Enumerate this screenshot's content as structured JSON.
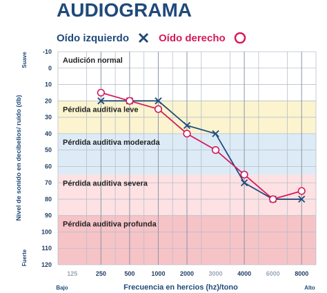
{
  "title": "AUDIOGRAMA",
  "legend": {
    "left_label": "Oído izquierdo",
    "right_label": "Oído derecho"
  },
  "colors": {
    "title": "#1f4a7a",
    "left_ear": "#1f4a7a",
    "right_ear": "#d6195b",
    "band_normal": "#ffffff",
    "band_leve": "#fbf4cf",
    "band_moderada": "#dcebf6",
    "band_severa": "#fde1e3",
    "band_profunda": "#f6c3c7",
    "grid": "#b7bfca"
  },
  "chart_data": {
    "type": "line",
    "title": "AUDIOGRAMA",
    "xlabel": "Frecuencia en hercios (hz)/tono",
    "ylabel": "Nivel de sonido en decibelios/ ruido (db)",
    "x_ticks": [
      "125",
      "250",
      "500",
      "1000",
      "2000",
      "3000",
      "4000",
      "6000",
      "8000"
    ],
    "x_major": [
      "250",
      "500",
      "1000",
      "2000",
      "4000",
      "8000"
    ],
    "x_left_note": "Bajo",
    "x_right_note": "Alto",
    "y_ticks": [
      -10,
      0,
      10,
      20,
      30,
      40,
      50,
      60,
      70,
      80,
      90,
      100,
      110,
      120
    ],
    "ylim": [
      -10,
      120
    ],
    "y_inverted": true,
    "y_top_note": "Suave",
    "y_bottom_note": "Fuerte",
    "bands": [
      {
        "label": "Audición normal",
        "from": -10,
        "to": 20
      },
      {
        "label": "Pérdida auditiva leve",
        "from": 20,
        "to": 40
      },
      {
        "label": "Pérdida auditiva moderada",
        "from": 40,
        "to": 65
      },
      {
        "label": "Pérdida auditiva severa",
        "from": 65,
        "to": 90
      },
      {
        "label": "Pérdida auditiva profunda",
        "from": 90,
        "to": 120
      }
    ],
    "series": [
      {
        "name": "Oído izquierdo",
        "marker": "x",
        "points": [
          {
            "x": "250",
            "y": 20
          },
          {
            "x": "500",
            "y": 20
          },
          {
            "x": "1000",
            "y": 20
          },
          {
            "x": "2000",
            "y": 35
          },
          {
            "x": "3000",
            "y": 40
          },
          {
            "x": "4000",
            "y": 70
          },
          {
            "x": "6000",
            "y": 80
          },
          {
            "x": "8000",
            "y": 80
          }
        ]
      },
      {
        "name": "Oído derecho",
        "marker": "o",
        "points": [
          {
            "x": "250",
            "y": 15
          },
          {
            "x": "500",
            "y": 20
          },
          {
            "x": "1000",
            "y": 25
          },
          {
            "x": "2000",
            "y": 40
          },
          {
            "x": "3000",
            "y": 50
          },
          {
            "x": "4000",
            "y": 65
          },
          {
            "x": "6000",
            "y": 80
          },
          {
            "x": "8000",
            "y": 75
          }
        ]
      }
    ]
  }
}
